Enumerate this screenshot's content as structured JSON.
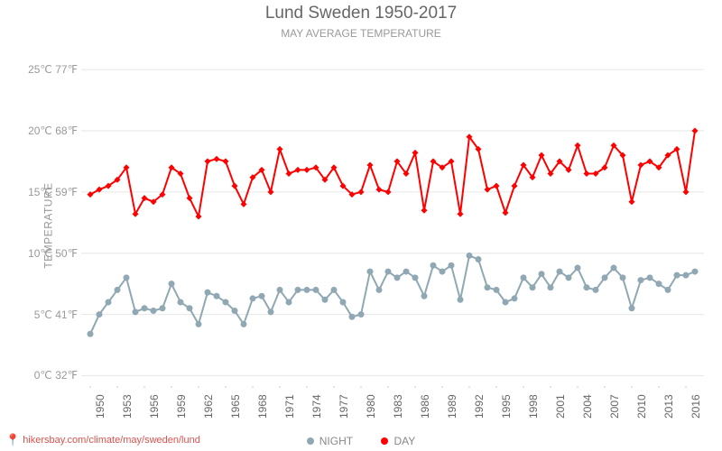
{
  "title": "Lund Sweden 1950-2017",
  "subtitle": "MAY AVERAGE TEMPERATURE",
  "y_axis_title": "TEMPERATURE",
  "source_label": "hikersbay.com/climate/may/sweden/lund",
  "chart": {
    "type": "line",
    "background_color": "#ffffff",
    "grid_color": "#e6e6e6",
    "axis_color": "#cccccc",
    "title_color": "#666666",
    "subtitle_color": "#999999",
    "tick_label_color": "#999999",
    "x_tick_label_color": "#666666",
    "title_fontsize": 19,
    "subtitle_fontsize": 12,
    "tick_fontsize": 12,
    "line_width": 2,
    "marker_size": 3.5,
    "y_min_c": -1,
    "y_max_c": 27,
    "y_ticks": [
      {
        "c": 0,
        "label": "0℃ 32℉"
      },
      {
        "c": 5,
        "label": "5℃ 41℉"
      },
      {
        "c": 10,
        "label": "10℃ 50℉"
      },
      {
        "c": 15,
        "label": "15℃ 59℉"
      },
      {
        "c": 20,
        "label": "20℃ 68℉"
      },
      {
        "c": 25,
        "label": "25℃ 77℉"
      }
    ],
    "x_years": [
      1950,
      1951,
      1952,
      1953,
      1954,
      1955,
      1956,
      1957,
      1958,
      1959,
      1960,
      1961,
      1962,
      1963,
      1964,
      1965,
      1966,
      1967,
      1968,
      1969,
      1970,
      1971,
      1972,
      1973,
      1974,
      1975,
      1976,
      1977,
      1978,
      1979,
      1980,
      1981,
      1982,
      1983,
      1984,
      1985,
      1986,
      1987,
      1988,
      1989,
      1990,
      1991,
      1992,
      1993,
      1994,
      1995,
      1996,
      1997,
      1998,
      1999,
      2000,
      2001,
      2002,
      2003,
      2004,
      2005,
      2006,
      2007,
      2008,
      2009,
      2010,
      2011,
      2012,
      2013,
      2014,
      2015,
      2016,
      2017
    ],
    "x_ticks": [
      1950,
      1953,
      1956,
      1959,
      1962,
      1965,
      1968,
      1971,
      1974,
      1977,
      1980,
      1983,
      1986,
      1989,
      1992,
      1995,
      1998,
      2001,
      2004,
      2007,
      2010,
      2013,
      2016
    ],
    "series": [
      {
        "name": "DAY",
        "color": "#ff0000",
        "marker_style": "diamond",
        "values": [
          14.8,
          15.2,
          15.5,
          16.0,
          17.0,
          13.2,
          14.5,
          14.2,
          14.8,
          17.0,
          16.5,
          14.5,
          13.0,
          17.5,
          17.7,
          17.5,
          15.5,
          14.0,
          16.2,
          16.8,
          15.0,
          18.5,
          16.5,
          16.8,
          16.8,
          17.0,
          16.0,
          17.0,
          15.5,
          14.8,
          15.0,
          17.2,
          15.2,
          15.0,
          17.5,
          16.5,
          18.2,
          13.5,
          17.5,
          17.0,
          17.5,
          13.2,
          19.5,
          18.5,
          15.2,
          15.5,
          13.3,
          15.5,
          17.2,
          16.2,
          18.0,
          16.5,
          17.5,
          16.8,
          18.8,
          16.5,
          16.5,
          17.0,
          18.8,
          18.0,
          14.2,
          17.2,
          17.5,
          17.0,
          18.0,
          18.5,
          15.0,
          20.0
        ]
      },
      {
        "name": "NIGHT",
        "color": "#8fa8b3",
        "marker_style": "circle",
        "values": [
          3.4,
          5.0,
          6.0,
          7.0,
          8.0,
          5.2,
          5.5,
          5.3,
          5.5,
          7.5,
          6.0,
          5.5,
          4.2,
          6.8,
          6.5,
          6.0,
          5.3,
          4.2,
          6.3,
          6.5,
          5.2,
          7.0,
          6.0,
          7.0,
          7.0,
          7.0,
          6.2,
          7.0,
          6.0,
          4.8,
          5.0,
          8.5,
          7.0,
          8.5,
          8.0,
          8.5,
          8.0,
          6.5,
          9.0,
          8.5,
          9.0,
          6.2,
          9.8,
          9.5,
          7.2,
          7.0,
          6.0,
          6.3,
          8.0,
          7.2,
          8.3,
          7.2,
          8.5,
          8.0,
          8.8,
          7.2,
          7.0,
          8.0,
          8.8,
          8.0,
          5.5,
          7.8,
          8.0,
          7.5,
          7.0,
          8.2,
          8.2,
          8.5
        ]
      }
    ],
    "legend_position": "bottom"
  }
}
